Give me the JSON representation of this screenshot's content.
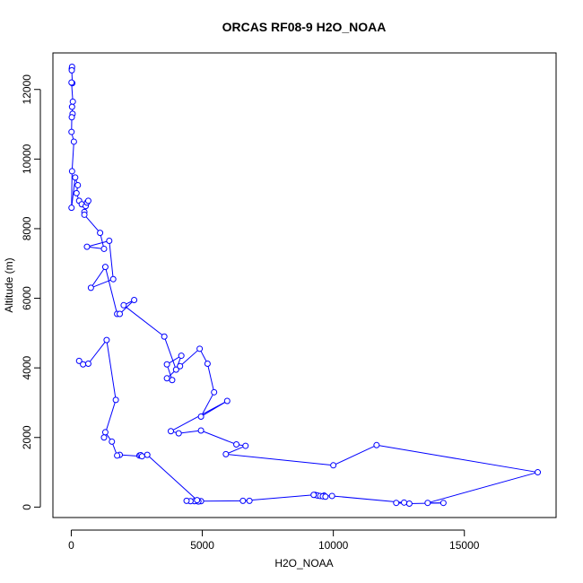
{
  "chart_data": {
    "type": "line",
    "title": "ORCAS RF08-9 H2O_NOAA",
    "xlabel": "H2O_NOAA",
    "ylabel": "Altitude (m)",
    "xlim": [
      -700,
      18500
    ],
    "ylim": [
      -300,
      13050
    ],
    "xticks": [
      0,
      5000,
      10000,
      15000
    ],
    "yticks": [
      0,
      2000,
      4000,
      6000,
      8000,
      10000,
      12000
    ],
    "series_color": "#0000ff",
    "series": [
      {
        "x": [
          20,
          30,
          20,
          40,
          10,
          60,
          30,
          50,
          20,
          10,
          100,
          30,
          10,
          150,
          250,
          200,
          300,
          400,
          550,
          500,
          600,
          650,
          500,
          1100,
          1250,
          600,
          1450,
          1600,
          750,
          1300,
          1750,
          1850,
          2400,
          2000,
          3550,
          4000,
          4200,
          3650,
          3850,
          3650,
          4150,
          4900,
          5200,
          5450,
          4950,
          5950,
          3800,
          4100,
          4950,
          6300,
          6650,
          5900,
          10000,
          11650,
          17800,
          13600,
          14200,
          12900,
          12400,
          12700,
          9950,
          9650,
          9300,
          9400,
          9500,
          9600,
          9700,
          9250,
          6550,
          6800,
          4950,
          4700,
          4850,
          4550,
          4400,
          4800,
          2900,
          2600,
          2650,
          2700,
          1850,
          1750,
          1550,
          1300,
          1250,
          1700,
          1350,
          650,
          300,
          450
        ],
        "y": [
          12600,
          12650,
          12550,
          12180,
          12200,
          11650,
          11500,
          11300,
          11200,
          10780,
          10500,
          9650,
          8600,
          9470,
          9250,
          9020,
          8800,
          8700,
          8650,
          8480,
          8750,
          8800,
          8400,
          7880,
          7420,
          7480,
          7650,
          6550,
          6300,
          6900,
          5550,
          5550,
          5950,
          5800,
          4900,
          3950,
          4350,
          4100,
          3650,
          3700,
          4050,
          4550,
          4120,
          3300,
          2600,
          3050,
          2180,
          2120,
          2200,
          1800,
          1760,
          1520,
          1200,
          1780,
          1000,
          120,
          120,
          100,
          120,
          130,
          320,
          330,
          350,
          330,
          320,
          310,
          300,
          350,
          180,
          180,
          170,
          170,
          160,
          170,
          180,
          200,
          1500,
          1480,
          1490,
          1460,
          1500,
          1480,
          1880,
          2150,
          2000,
          3080,
          4800,
          4120,
          4200,
          4100
        ]
      }
    ]
  }
}
